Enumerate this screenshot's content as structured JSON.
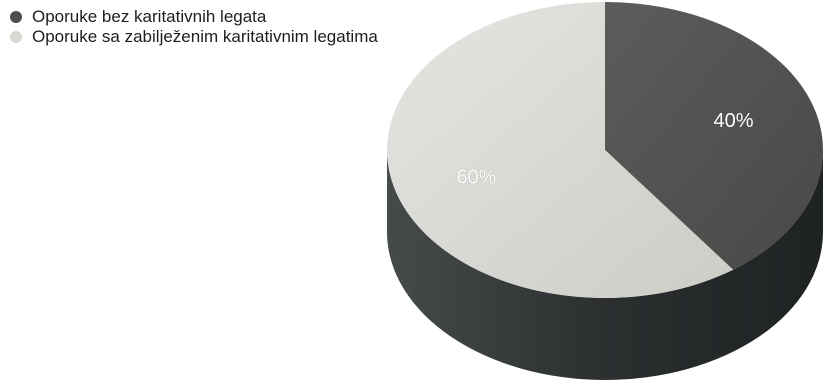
{
  "chart_data": {
    "type": "pie",
    "categories": [
      "Oporuke bez karitativnih legata",
      "Oporuke sa zabilježenim karitativnim legatima"
    ],
    "values": [
      40,
      60
    ],
    "data_labels": [
      "40%",
      "60%"
    ],
    "colors": [
      "#4f4f4e",
      "#d8d7d3"
    ],
    "side_colors": [
      "#2c2f30",
      "#353939"
    ],
    "legend": "top-left",
    "start": "top, clockwise"
  }
}
